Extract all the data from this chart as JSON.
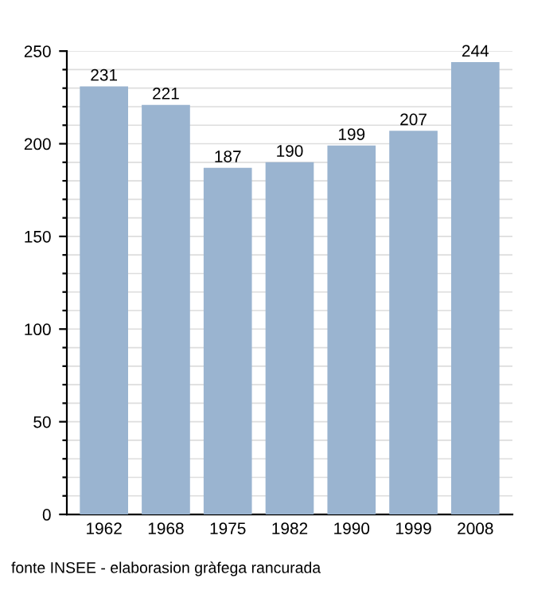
{
  "chart_data": {
    "type": "bar",
    "categories": [
      "1962",
      "1968",
      "1975",
      "1982",
      "1990",
      "1999",
      "2008"
    ],
    "values": [
      231,
      221,
      187,
      190,
      199,
      207,
      244
    ],
    "color": "#9ab4d0",
    "data_labels": true,
    "ylim": [
      0,
      250
    ],
    "yticks": [
      0,
      {
        "value": 10,
        "label": null
      },
      {
        "value": 20,
        "label": null
      },
      {
        "value": 30,
        "label": null
      },
      {
        "value": 40,
        "label": null
      },
      50,
      {
        "value": 60,
        "label": null
      },
      {
        "value": 70,
        "label": null
      },
      {
        "value": 80,
        "label": null
      },
      {
        "value": 90,
        "label": null
      },
      100,
      {
        "value": 110,
        "label": null
      },
      {
        "value": 120,
        "label": null
      },
      {
        "value": 130,
        "label": null
      },
      {
        "value": 140,
        "label": null
      },
      150,
      {
        "value": 160,
        "label": null
      },
      {
        "value": 170,
        "label": null
      },
      {
        "value": 180,
        "label": null
      },
      {
        "value": 190,
        "label": null
      },
      200,
      {
        "value": 210,
        "label": null
      },
      {
        "value": 220,
        "label": null
      },
      {
        "value": 230,
        "label": null
      },
      {
        "value": 240,
        "label": null
      },
      250
    ],
    "grid": "y",
    "annotations": [
      "fonte INSEE - elaborasion gràfega rancurada"
    ]
  }
}
